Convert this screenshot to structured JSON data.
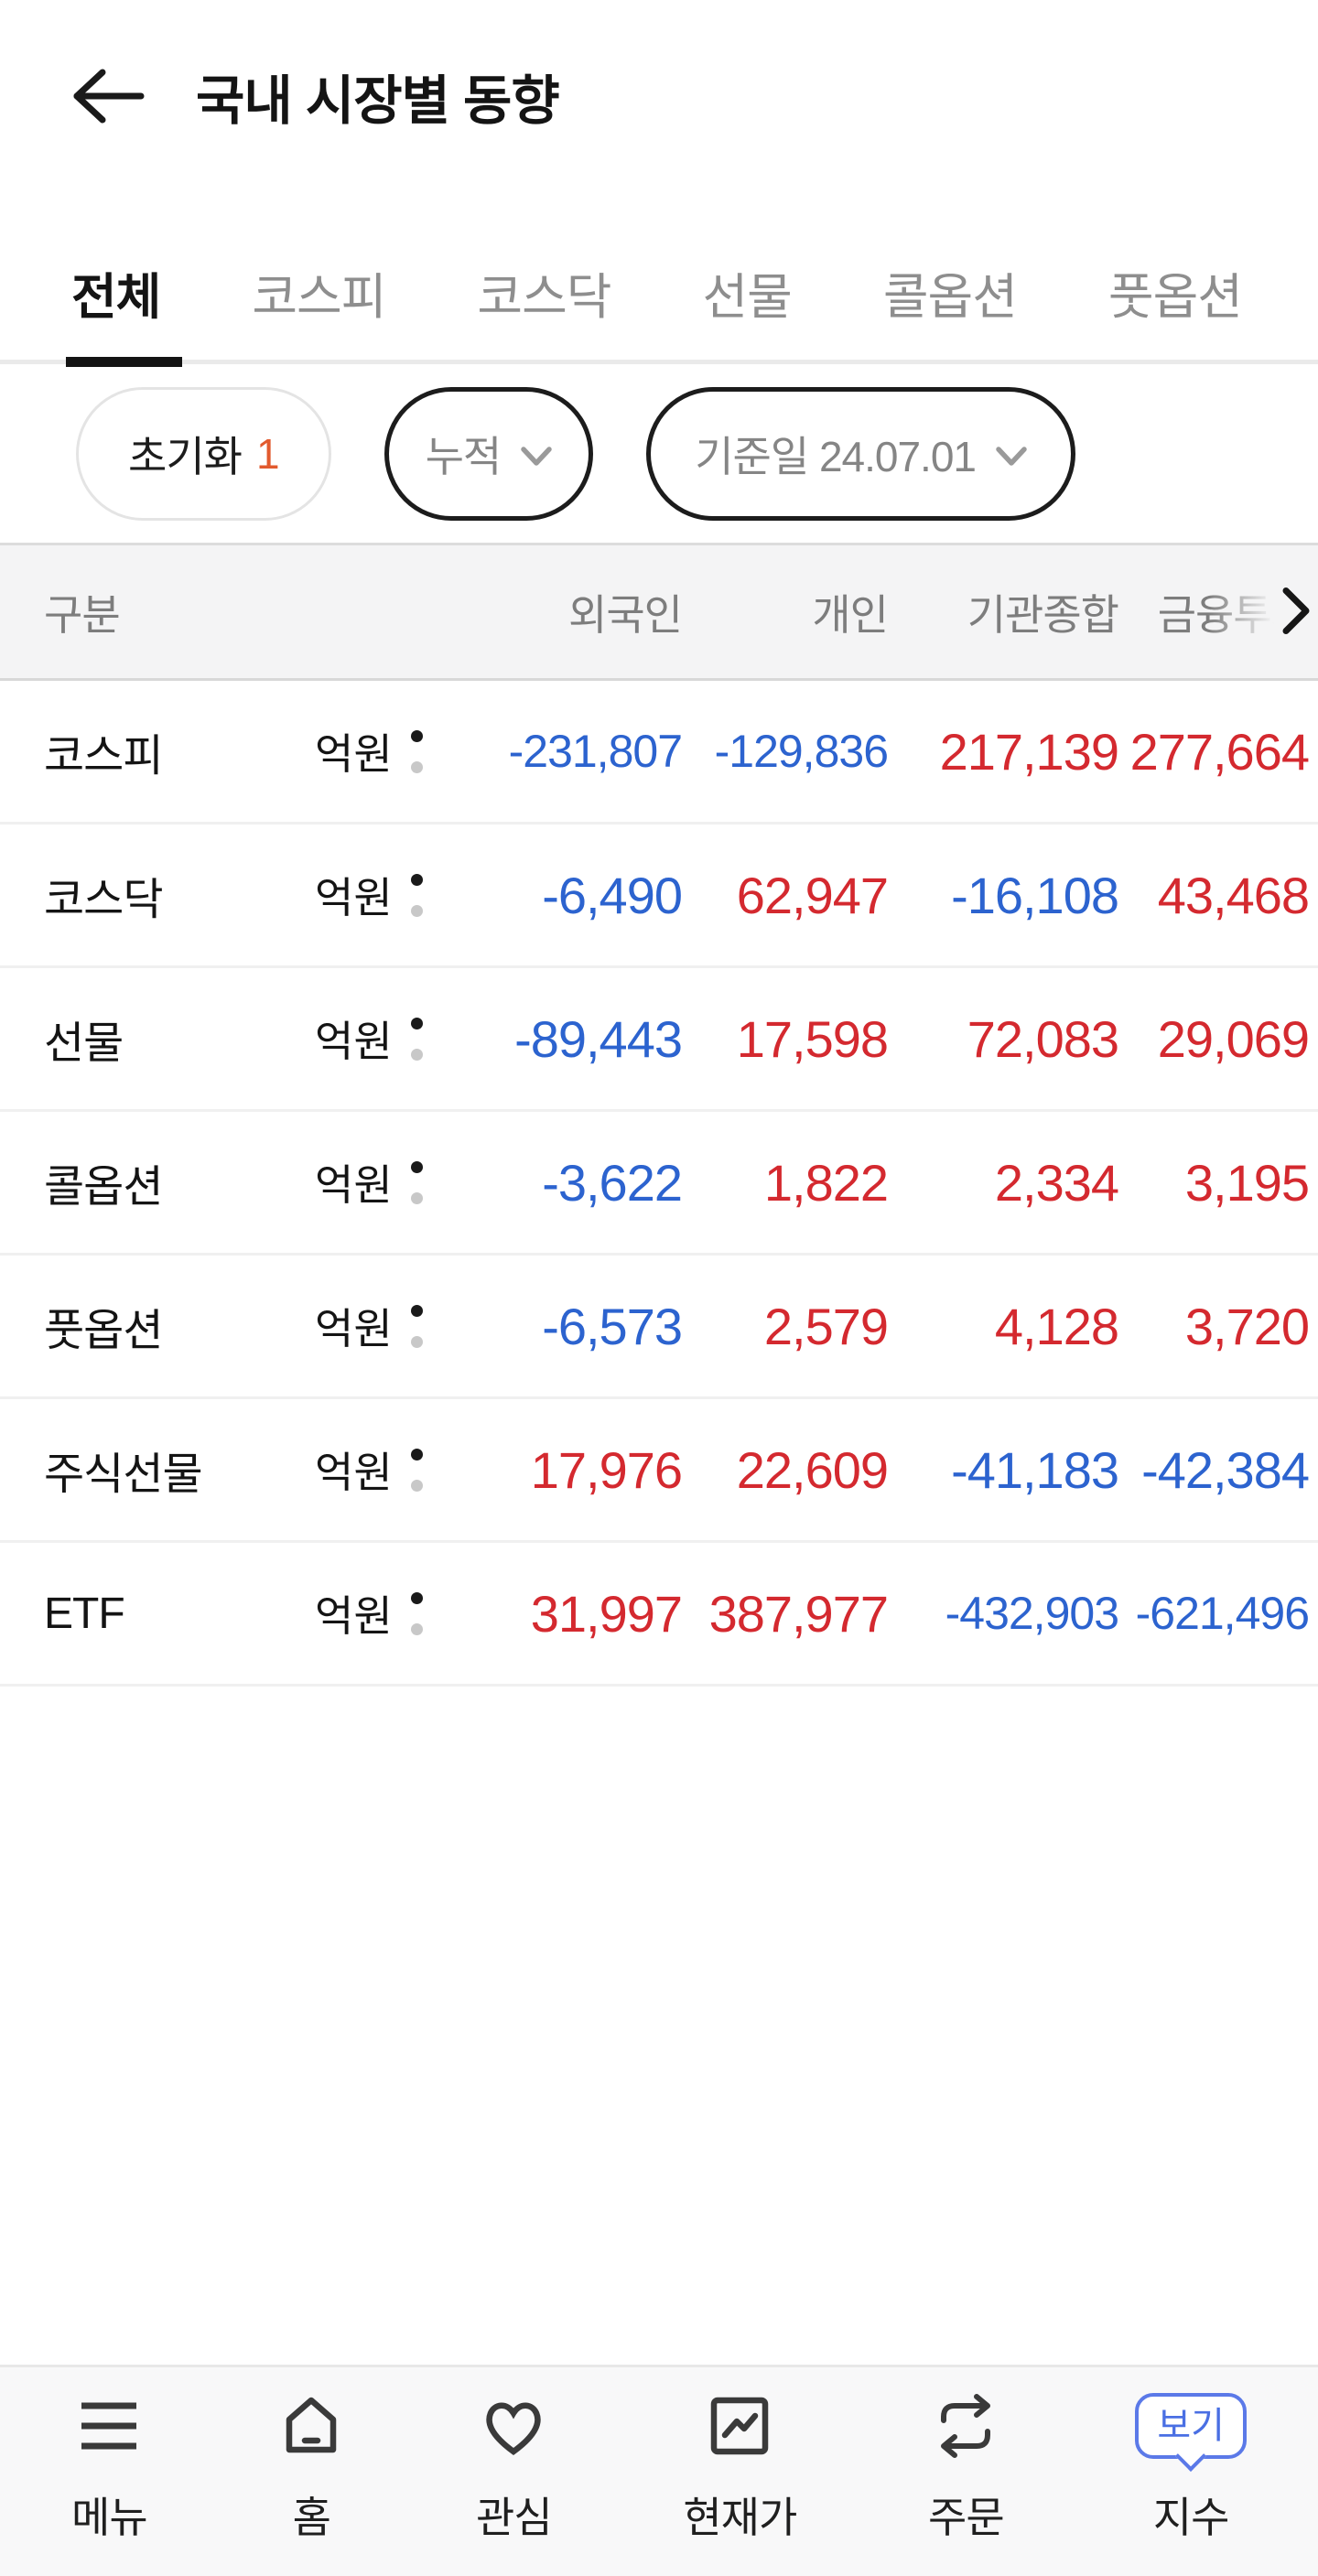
{
  "header": {
    "title": "국내 시장별 동향",
    "back_icon": "back-arrow-icon"
  },
  "tabs": [
    {
      "key": "all",
      "label": "전체",
      "active": true
    },
    {
      "key": "kospi",
      "label": "코스피",
      "active": false
    },
    {
      "key": "kosdaq",
      "label": "코스닥",
      "active": false
    },
    {
      "key": "futures",
      "label": "선물",
      "active": false
    },
    {
      "key": "call-option",
      "label": "콜옵션",
      "active": false
    },
    {
      "key": "put-option",
      "label": "풋옵션",
      "active": false
    }
  ],
  "filters": {
    "reset": {
      "label": "초기화",
      "count": "1"
    },
    "mode": {
      "label": "누적",
      "icon": "chevron-down-icon"
    },
    "date": {
      "label": "기준일 24.07.01",
      "icon": "chevron-down-icon"
    }
  },
  "table": {
    "columns": [
      "구분",
      "외국인",
      "개인",
      "기관종합",
      "금융투자"
    ],
    "unit": "억원",
    "scroll_hint_icon": "scroll-right-icon",
    "rows": [
      {
        "key": "kospi",
        "label": "코스피",
        "values": [
          "-231,807",
          "-129,836",
          "217,139",
          "277,664"
        ]
      },
      {
        "key": "kosdaq",
        "label": "코스닥",
        "values": [
          "-6,490",
          "62,947",
          "-16,108",
          "43,468"
        ]
      },
      {
        "key": "futures",
        "label": "선물",
        "values": [
          "-89,443",
          "17,598",
          "72,083",
          "29,069"
        ]
      },
      {
        "key": "call-option",
        "label": "콜옵션",
        "values": [
          "-3,622",
          "1,822",
          "2,334",
          "3,195"
        ]
      },
      {
        "key": "put-option",
        "label": "풋옵션",
        "values": [
          "-6,573",
          "2,579",
          "4,128",
          "3,720"
        ]
      },
      {
        "key": "stock-futures",
        "label": "주식선물",
        "values": [
          "17,976",
          "22,609",
          "-41,183",
          "-42,384"
        ]
      },
      {
        "key": "etf",
        "label": "ETF",
        "values": [
          "31,997",
          "387,977",
          "-432,903",
          "-621,496"
        ]
      }
    ]
  },
  "bottom_nav": {
    "items": [
      {
        "key": "menu",
        "label": "메뉴",
        "icon": "menu-icon"
      },
      {
        "key": "home",
        "label": "홈",
        "icon": "home-icon"
      },
      {
        "key": "favorites",
        "label": "관심",
        "icon": "heart-icon"
      },
      {
        "key": "price",
        "label": "현재가",
        "icon": "chart-icon"
      },
      {
        "key": "order",
        "label": "주문",
        "icon": "swap-icon"
      },
      {
        "key": "index",
        "label": "지수",
        "icon": "",
        "badge": "보기"
      }
    ]
  },
  "colors": {
    "positive_red": "#d4292f",
    "negative_blue": "#2c63cf",
    "reset_count_orange": "#e25a2e",
    "badge_blue": "#4a6fe3",
    "active_tab_black": "#141414",
    "inactive_gray": "#8e8e8e",
    "table_head_bg": "#f4f4f5",
    "bottom_nav_bg": "#f8f8f9"
  }
}
